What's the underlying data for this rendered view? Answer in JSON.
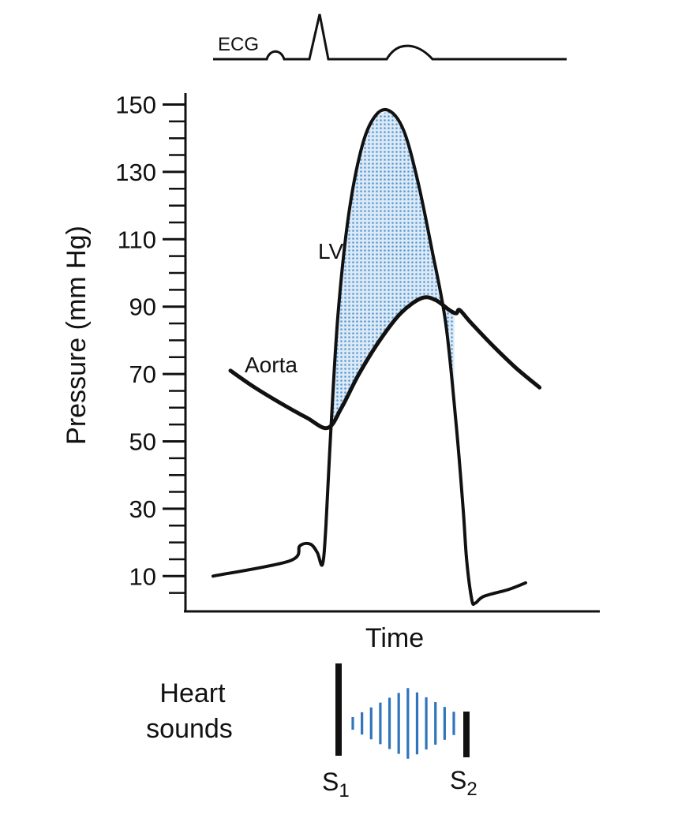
{
  "chart_data": {
    "type": "line",
    "title": "",
    "xlabel": "Time",
    "ylabel": "Pressure (mm Hg)",
    "ylim": [
      0,
      150
    ],
    "yticks": [
      10,
      30,
      50,
      70,
      90,
      110,
      130,
      150
    ],
    "x_unit": "relative time (0-100)",
    "grid": false,
    "series": [
      {
        "name": "LV",
        "points": [
          [
            0,
            10
          ],
          [
            22,
            14.5
          ],
          [
            25,
            19
          ],
          [
            28,
            19.5
          ],
          [
            30,
            17
          ],
          [
            31.5,
            13.5
          ],
          [
            32.5,
            25
          ],
          [
            34,
            55
          ],
          [
            36,
            88
          ],
          [
            39,
            117
          ],
          [
            43,
            138
          ],
          [
            47,
            147
          ],
          [
            51,
            148
          ],
          [
            55,
            142
          ],
          [
            59,
            127
          ],
          [
            63,
            107
          ],
          [
            67,
            85
          ],
          [
            70,
            55
          ],
          [
            72,
            30
          ],
          [
            73,
            15
          ],
          [
            74.5,
            3
          ],
          [
            75.5,
            2
          ],
          [
            78,
            4
          ],
          [
            85,
            6
          ],
          [
            90,
            8
          ]
        ]
      },
      {
        "name": "Aorta",
        "points": [
          [
            5,
            71
          ],
          [
            12,
            66
          ],
          [
            20,
            61
          ],
          [
            27,
            57
          ],
          [
            33,
            54
          ],
          [
            37,
            60
          ],
          [
            42,
            70
          ],
          [
            48,
            80
          ],
          [
            54,
            88
          ],
          [
            60,
            92.5
          ],
          [
            64,
            92
          ],
          [
            68,
            89
          ],
          [
            70,
            88
          ],
          [
            71,
            89
          ],
          [
            74,
            85.5
          ],
          [
            80,
            79
          ],
          [
            87,
            72
          ],
          [
            94,
            66
          ]
        ]
      }
    ],
    "shaded_region": "LV above Aorta",
    "annotations": {
      "ecg": {
        "label": "ECG",
        "waves": [
          "P",
          "QRS",
          "T"
        ]
      },
      "heart_sounds": {
        "label_line1": "Heart",
        "label_line2": "sounds",
        "s1": {
          "main": "S",
          "sub": "1"
        },
        "s2": {
          "main": "S",
          "sub": "2"
        }
      }
    }
  },
  "colors": {
    "line": "#111111",
    "fill": "#5a9ad1",
    "murmur": "#2f74bd"
  }
}
